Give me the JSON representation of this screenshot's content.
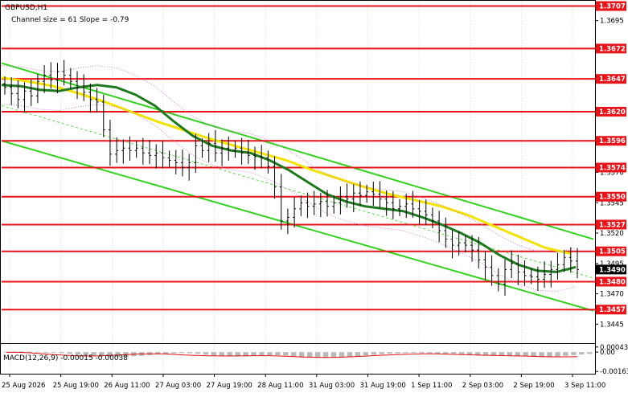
{
  "chart_data": [
    {
      "type": "line",
      "title": "GBPUSD,H1",
      "subtitle": "Channel size = 61 Slope = -0.79",
      "ylim": [
        1.343,
        1.371
      ],
      "y_ticks": [
        {
          "value": 1.3695,
          "label": "1.3695"
        },
        {
          "value": 1.3645,
          "label": "1.3645"
        },
        {
          "value": 1.362,
          "label": "1.3620"
        },
        {
          "value": 1.3595,
          "label": "1.3595"
        },
        {
          "value": 1.357,
          "label": "1.3570"
        },
        {
          "value": 1.3545,
          "label": "1.3545"
        },
        {
          "value": 1.352,
          "label": "1.3520"
        },
        {
          "value": 1.3495,
          "label": "1.3495"
        },
        {
          "value": 1.347,
          "label": "1.3470"
        },
        {
          "value": 1.3445,
          "label": "1.3445"
        }
      ],
      "levels": [
        {
          "value": 1.3707,
          "label": "1.3707"
        },
        {
          "value": 1.3672,
          "label": "1.3672"
        },
        {
          "value": 1.3647,
          "label": "1.3647"
        },
        {
          "value": 1.362,
          "label": "1.3620"
        },
        {
          "value": 1.3596,
          "label": "1.3596"
        },
        {
          "value": 1.3574,
          "label": "1.3574"
        },
        {
          "value": 1.355,
          "label": "1.3550"
        },
        {
          "value": 1.3527,
          "label": "1.3527"
        },
        {
          "value": 1.3505,
          "label": "1.3505"
        },
        {
          "value": 1.348,
          "label": "1.3480"
        },
        {
          "value": 1.3457,
          "label": "1.3457"
        }
      ],
      "current_price": {
        "value": 1.349,
        "label": "1.3490"
      },
      "x_labels": [
        "25 Aug 2026",
        "25 Aug 19:00",
        "26 Aug 11:00",
        "27 Aug 03:00",
        "27 Aug 19:00",
        "28 Aug 11:00",
        "31 Aug 03:00",
        "31 Aug 19:00",
        "1 Sep 11:00",
        "2 Sep 03:00",
        "2 Sep 19:00",
        "3 Sep 11:00"
      ],
      "x_range": [
        0,
        118
      ],
      "channel": {
        "upper": [
          [
            0,
            1.366
          ],
          [
            118,
            1.3515
          ]
        ],
        "middle": [
          [
            0,
            1.3625
          ],
          [
            118,
            1.3483
          ]
        ],
        "lower": [
          [
            0,
            1.3596
          ],
          [
            118,
            1.3456
          ]
        ]
      },
      "series": [
        {
          "values": [
            1.364,
            1.3635,
            1.363,
            1.3637,
            1.3633,
            1.3645,
            1.365,
            1.3646,
            1.3653,
            1.365,
            1.3645,
            1.364,
            1.3636,
            1.363,
            1.3628,
            1.3605,
            1.3585,
            1.3588,
            1.359,
            1.3588,
            1.359,
            1.3586,
            1.3584,
            1.3586,
            1.3582,
            1.358,
            1.3578,
            1.3574,
            1.3578,
            1.3592,
            1.3588,
            1.3594,
            1.3586,
            1.359,
            1.3588,
            1.359,
            1.3586,
            1.3584,
            1.3583,
            1.3582,
            1.3575,
            1.3558,
            1.353,
            1.3533,
            1.354,
            1.3545,
            1.3542,
            1.3544,
            1.3546,
            1.3542,
            1.3545,
            1.355,
            1.3548,
            1.3553,
            1.3551,
            1.3554,
            1.3552,
            1.3548,
            1.3545,
            1.354,
            1.3542,
            1.3544,
            1.354,
            1.3538,
            1.3535,
            1.353,
            1.3522,
            1.3515,
            1.351,
            1.3512,
            1.351,
            1.3506,
            1.3498,
            1.3492,
            1.3485,
            1.3478,
            1.349,
            1.3495,
            1.3488,
            1.3485,
            1.3484,
            1.3482,
            1.3486,
            1.349,
            1.3494,
            1.35,
            1.3497,
            1.349
          ]
        }
      ],
      "indicators": [
        {
          "name": "Green MA",
          "values": [
            1.3642,
            1.3641,
            1.3638,
            1.3637,
            1.364,
            1.3642,
            1.364,
            1.3634,
            1.3625,
            1.3612,
            1.36,
            1.3592,
            1.3588,
            1.3586,
            1.358,
            1.3572,
            1.3562,
            1.3552,
            1.3546,
            1.3542,
            1.354,
            1.3538,
            1.3533,
            1.3527,
            1.352,
            1.3512,
            1.3502,
            1.3494,
            1.3489,
            1.3488,
            1.3492
          ]
        },
        {
          "name": "Yellow MA",
          "values": [
            1.3648,
            1.3645,
            1.3641,
            1.3635,
            1.3628,
            1.362,
            1.3612,
            1.3605,
            1.3598,
            1.3592,
            1.3586,
            1.358,
            1.3572,
            1.3565,
            1.3558,
            1.3552,
            1.3547,
            1.3542,
            1.3535,
            1.3526,
            1.3517,
            1.3508,
            1.3503
          ]
        }
      ]
    },
    {
      "type": "bar",
      "title": "MACD(12,26,9) -0.00015 -0.00038",
      "ylim": [
        -0.00175,
        0.00055
      ],
      "y_ticks": [
        {
          "value": 0.00043,
          "label": "0.00043"
        },
        {
          "value": 0.0,
          "label": "0.00"
        },
        {
          "value": -0.00163,
          "label": "-0.00163"
        }
      ],
      "histogram": [
        2e-05,
        4e-05,
        5e-05,
        4e-05,
        3e-05,
        1e-05,
        -2e-05,
        -8e-05,
        -0.00014,
        -0.0002,
        -0.00026,
        -0.00031,
        -0.00035,
        -0.00038,
        -0.00039,
        -0.00038,
        -0.00035,
        -0.00031,
        -0.00026,
        -0.0002,
        -0.00014,
        -0.0001,
        -8e-05,
        -9e-05,
        -0.00014,
        -0.00021,
        -0.00028,
        -0.00033,
        -0.00036,
        -0.00037,
        -0.00036,
        -0.00032,
        -0.00028,
        -0.00026,
        -0.00026,
        -0.00028,
        -0.00034,
        -0.0004,
        -0.00045,
        -0.00048,
        -0.00049,
        -0.00048,
        -0.00044,
        -0.00039,
        -0.00033,
        -0.00027,
        -0.00022,
        -0.00017,
        -0.00013,
        -0.0001,
        -8e-05,
        -7e-05,
        -8e-05,
        -0.0001,
        -0.00012,
        -0.00013,
        -0.00014,
        -0.00018,
        -0.00022,
        -0.00026,
        -0.00028,
        -0.0003,
        -0.00031,
        -0.00032,
        -0.00033,
        -0.00035,
        -0.00038,
        -0.00041,
        -0.0004,
        -0.00036,
        -0.00031,
        -0.00025,
        -0.0002,
        -0.00015
      ],
      "signal": [
        -2e-05,
        -2e-05,
        -6e-05,
        -0.00013,
        -0.00021,
        -0.00027,
        -0.00031,
        -0.00033,
        -0.00031,
        -0.00026,
        -0.00021,
        -0.00016,
        -0.00014,
        -0.00015,
        -0.00019,
        -0.00024,
        -0.00028,
        -0.00031,
        -0.00032,
        -0.00032,
        -0.00031,
        -0.0003,
        -0.0003,
        -0.00033,
        -0.00037,
        -0.00041,
        -0.00044,
        -0.00045,
        -0.00043,
        -0.00039,
        -0.00034,
        -0.00029,
        -0.00024,
        -0.0002,
        -0.00017,
        -0.00015,
        -0.00015,
        -0.00017,
        -0.0002,
        -0.00023,
        -0.00026,
        -0.00028,
        -0.0003,
        -0.00032,
        -0.00035,
        -0.00038,
        -0.0004,
        -0.0004,
        -0.00038
      ]
    }
  ],
  "colors": {
    "level_line": "#e8141a",
    "level_label_bg": "#e8141a",
    "current_label_bg": "#000000",
    "price": "#000000",
    "channel": "#32d21e",
    "ma_green": "#1f7a1f",
    "ma_yellow": "#f2e200",
    "envelope": "#d060d8",
    "macd_hist": "#b9b9b9",
    "macd_signal": "#e01010"
  }
}
